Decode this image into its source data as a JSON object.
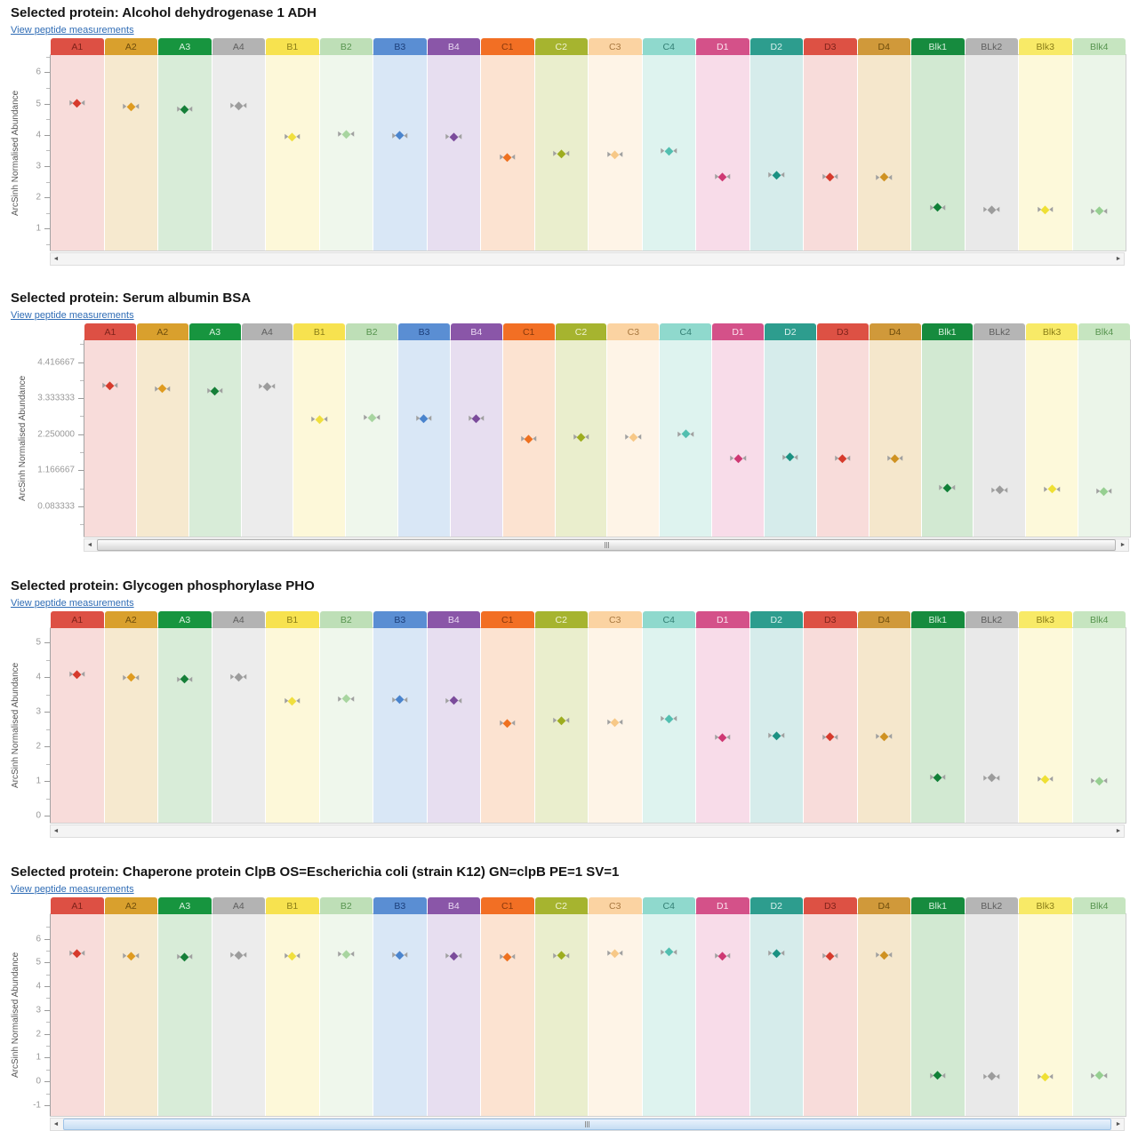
{
  "ui": {
    "link_label": "View peptide measurements",
    "scroll_left_icon": "◄",
    "scroll_right_icon": "►"
  },
  "columns": [
    {
      "id": "A1",
      "header_bg": "#dd5044",
      "header_text": "#7e221a",
      "body_bg": "#f8dcda",
      "marker": "#d63a2c"
    },
    {
      "id": "A2",
      "header_bg": "#d9a02d",
      "header_text": "#6d4c0c",
      "body_bg": "#f6e9cf",
      "marker": "#df9b20"
    },
    {
      "id": "A3",
      "header_bg": "#17953f",
      "header_text": "#d7f0dd",
      "body_bg": "#d8ecd8",
      "marker": "#157f38"
    },
    {
      "id": "A4",
      "header_bg": "#b3b3b3",
      "header_text": "#5e5e5e",
      "body_bg": "#ececec",
      "marker": "#9c9c9c"
    },
    {
      "id": "B1",
      "header_bg": "#f7e24f",
      "header_text": "#8a7d18",
      "body_bg": "#fdf8d9",
      "marker": "#f0df3e"
    },
    {
      "id": "B2",
      "header_bg": "#bedfb7",
      "header_text": "#57944f",
      "body_bg": "#eff7ec",
      "marker": "#a8d5a0"
    },
    {
      "id": "B3",
      "header_bg": "#5a8ed3",
      "header_text": "#1c3f7a",
      "body_bg": "#d9e7f6",
      "marker": "#4a84cd"
    },
    {
      "id": "B4",
      "header_bg": "#8a56a8",
      "header_text": "#ead9f2",
      "body_bg": "#e7def0",
      "marker": "#7b4b9b"
    },
    {
      "id": "C1",
      "header_bg": "#f26f24",
      "header_text": "#87380c",
      "body_bg": "#fce3d1",
      "marker": "#ee7120"
    },
    {
      "id": "C2",
      "header_bg": "#a6b42f",
      "header_text": "#f1f4d4",
      "body_bg": "#eaeecd",
      "marker": "#9dad1f"
    },
    {
      "id": "C3",
      "header_bg": "#fbd3a2",
      "header_text": "#a87840",
      "body_bg": "#fef4e7",
      "marker": "#f7c887"
    },
    {
      "id": "C4",
      "header_bg": "#8fd9cd",
      "header_text": "#337f74",
      "body_bg": "#def3ef",
      "marker": "#52bfb0"
    },
    {
      "id": "D1",
      "header_bg": "#d45189",
      "header_text": "#fbe3ee",
      "body_bg": "#f8dce9",
      "marker": "#ce3873"
    },
    {
      "id": "D2",
      "header_bg": "#2d9d8e",
      "header_text": "#d9f0ed",
      "body_bg": "#d6eceb",
      "marker": "#1a9182"
    },
    {
      "id": "D3",
      "header_bg": "#dd5144",
      "header_text": "#7e221a",
      "body_bg": "#f8dcda",
      "marker": "#d63a2c"
    },
    {
      "id": "D4",
      "header_bg": "#d0993a",
      "header_text": "#6d4c0c",
      "body_bg": "#f5e7cc",
      "marker": "#cf9222"
    },
    {
      "id": "Blk1",
      "header_bg": "#168b3e",
      "header_text": "#d7f0dd",
      "body_bg": "#d2e9d2",
      "marker": "#118038"
    },
    {
      "id": "BLk2",
      "header_bg": "#b5b5b5",
      "header_text": "#5e5e5e",
      "body_bg": "#e9e9e9",
      "marker": "#9c9c9c"
    },
    {
      "id": "Blk3",
      "header_bg": "#f8ea67",
      "header_text": "#8a7d18",
      "body_bg": "#fdf9da",
      "marker": "#efe034"
    },
    {
      "id": "Blk4",
      "header_bg": "#c6e5c0",
      "header_text": "#57944f",
      "body_bg": "#ebf5e9",
      "marker": "#96cf91"
    }
  ],
  "chart_data": [
    {
      "type": "scatter",
      "title": "Selected protein: Alcohol dehydrogenase 1 ADH",
      "ylabel": "ArcSinh Normalised Abundance",
      "categories": [
        "A1",
        "A2",
        "A3",
        "A4",
        "B1",
        "B2",
        "B3",
        "B4",
        "C1",
        "C2",
        "C3",
        "C4",
        "D1",
        "D2",
        "D3",
        "D4",
        "Blk1",
        "BLk2",
        "Blk3",
        "Blk4"
      ],
      "values": [
        5.02,
        4.91,
        4.83,
        4.94,
        3.93,
        4.03,
        3.98,
        3.95,
        3.28,
        3.4,
        3.38,
        3.48,
        2.67,
        2.71,
        2.67,
        2.65,
        1.68,
        1.62,
        1.62,
        1.57
      ],
      "yticks": [
        1,
        2,
        3,
        4,
        5,
        6
      ],
      "ytick_labels": [
        "1",
        "2",
        "3",
        "4",
        "5",
        "6"
      ],
      "ylim": [
        0.3,
        6.55
      ],
      "grid": false,
      "legend": false
    },
    {
      "type": "scatter",
      "title": "Selected protein: Serum albumin BSA",
      "ylabel": "ArcSinh Normalised Abundance",
      "categories": [
        "A1",
        "A2",
        "A3",
        "A4",
        "B1",
        "B2",
        "B3",
        "B4",
        "C1",
        "C2",
        "C3",
        "C4",
        "D1",
        "D2",
        "D3",
        "D4",
        "Blk1",
        "BLk2",
        "Blk3",
        "Blk4"
      ],
      "values": [
        3.72,
        3.62,
        3.56,
        3.68,
        2.7,
        2.75,
        2.73,
        2.73,
        2.11,
        2.16,
        2.16,
        2.26,
        1.53,
        1.57,
        1.53,
        1.53,
        0.65,
        0.58,
        0.61,
        0.54
      ],
      "yticks": [
        0.083333,
        1.166667,
        2.25,
        3.333333,
        4.416667
      ],
      "ytick_labels": [
        "0.083333",
        "1.166667",
        "2.250000",
        "3.333333",
        "4.416667"
      ],
      "ylim": [
        -0.82,
        5.07
      ],
      "grid": false,
      "legend": false
    },
    {
      "type": "scatter",
      "title": "Selected protein: Glycogen phosphorylase PHO",
      "ylabel": "ArcSinh Normalised Abundance",
      "categories": [
        "A1",
        "A2",
        "A3",
        "A4",
        "B1",
        "B2",
        "B3",
        "B4",
        "C1",
        "C2",
        "C3",
        "C4",
        "D1",
        "D2",
        "D3",
        "D4",
        "Blk1",
        "BLk2",
        "Blk3",
        "Blk4"
      ],
      "values": [
        4.08,
        4.0,
        3.95,
        4.02,
        3.31,
        3.38,
        3.36,
        3.33,
        2.67,
        2.75,
        2.71,
        2.81,
        2.26,
        2.31,
        2.28,
        2.29,
        1.11,
        1.1,
        1.06,
        1.01
      ],
      "yticks": [
        0,
        1,
        2,
        3,
        4,
        5
      ],
      "ytick_labels": [
        "0",
        "1",
        "2",
        "3",
        "4",
        "5"
      ],
      "ylim": [
        -0.2,
        5.42
      ],
      "grid": false,
      "legend": false
    },
    {
      "type": "scatter",
      "title": "Selected protein: Chaperone protein ClpB OS=Escherichia coli (strain K12) GN=clpB PE=1 SV=1",
      "ylabel": "ArcSinh Normalised Abundance",
      "categories": [
        "A1",
        "A2",
        "A3",
        "A4",
        "B1",
        "B2",
        "B3",
        "B4",
        "C1",
        "C2",
        "C3",
        "C4",
        "D1",
        "D2",
        "D3",
        "D4",
        "Blk1",
        "BLk2",
        "Blk3",
        "Blk4"
      ],
      "values": [
        5.38,
        5.27,
        5.23,
        5.32,
        5.27,
        5.35,
        5.33,
        5.27,
        5.23,
        5.3,
        5.38,
        5.45,
        5.29,
        5.38,
        5.29,
        5.32,
        0.25,
        0.22,
        0.19,
        0.25
      ],
      "yticks": [
        -1,
        0,
        1,
        2,
        3,
        4,
        5,
        6
      ],
      "ytick_labels": [
        "-1",
        "0",
        "1",
        "2",
        "3",
        "4",
        "5",
        "6"
      ],
      "ylim": [
        -1.45,
        7.03
      ],
      "grid": false,
      "legend": false
    }
  ]
}
